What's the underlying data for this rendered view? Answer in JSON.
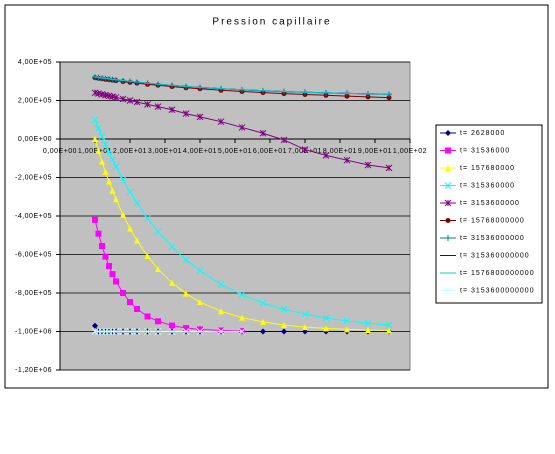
{
  "chart_data": {
    "type": "line",
    "title": "Pression capillaire",
    "x": [
      10,
      11,
      12,
      13,
      14,
      15,
      16,
      18,
      20,
      22,
      25,
      28,
      32,
      36,
      40,
      46,
      52,
      58,
      64,
      70,
      76,
      82,
      88,
      94
    ],
    "xlim": [
      0,
      100
    ],
    "xticks": [
      {
        "value": 0,
        "label": "0,00E+00"
      },
      {
        "value": 10,
        "label": "1,00E+01"
      },
      {
        "value": 20,
        "label": "2,00E+01"
      },
      {
        "value": 30,
        "label": "3,00E+01"
      },
      {
        "value": 40,
        "label": "4,00E+01"
      },
      {
        "value": 50,
        "label": "5,00E+01"
      },
      {
        "value": 60,
        "label": "6,00E+01"
      },
      {
        "value": 70,
        "label": "7,00E+01"
      },
      {
        "value": 80,
        "label": "8,00E+01"
      },
      {
        "value": 90,
        "label": "9,00E+01"
      },
      {
        "value": 100,
        "label": "1,00E+02"
      }
    ],
    "ylim": [
      -1200000,
      400000
    ],
    "yticks": [
      {
        "value": 400000,
        "label": "4,00E+05"
      },
      {
        "value": 200000,
        "label": "2,00E+05"
      },
      {
        "value": 0,
        "label": "0,00E+00"
      },
      {
        "value": -200000,
        "label": "-2,00E+05"
      },
      {
        "value": -400000,
        "label": "-4,00E+05"
      },
      {
        "value": -600000,
        "label": "-6,00E+05"
      },
      {
        "value": -800000,
        "label": "-8,00E+05"
      },
      {
        "value": -1000000,
        "label": "-1,00E+06"
      },
      {
        "value": -1200000,
        "label": "-1,20E+06"
      }
    ],
    "grid": true,
    "legend": "right",
    "series": [
      {
        "name": "t= 2628000",
        "color": "#000080",
        "marker": "diamond",
        "values": [
          -970000,
          -1000000,
          -1000000,
          -1000000,
          -1000000,
          -1000000,
          -1000000,
          -1000000,
          -1000000,
          -1000000,
          -1000000,
          -1000000,
          -1000000,
          -1000000,
          -1000000,
          -1000000,
          -1000000,
          -1000000,
          -1000000,
          -1000000,
          -1000000,
          -1000000,
          -1000000,
          -1000000
        ]
      },
      {
        "name": "t= 31536000",
        "color": "#ff00ff",
        "marker": "square",
        "values": [
          -420000,
          -492000,
          -556000,
          -611000,
          -660000,
          -702000,
          -740000,
          -800000,
          -847000,
          -883000,
          -922000,
          -947000,
          -969000,
          -982000,
          -989000,
          -995000,
          -998000,
          null,
          null,
          null,
          null,
          null,
          null,
          null
        ]
      },
      {
        "name": "t= 157680000",
        "color": "#ffff00",
        "marker": "triangle",
        "values": [
          0,
          -61000,
          -118000,
          -171000,
          -221000,
          -268000,
          -313000,
          -393000,
          -465000,
          -528000,
          -608000,
          -675000,
          -747000,
          -803000,
          -847000,
          -895000,
          -928000,
          -950000,
          -966000,
          -977000,
          -984000,
          -989000,
          -992000,
          -995000
        ]
      },
      {
        "name": "t= 315360000",
        "color": "#00ffff",
        "marker": "x",
        "values": [
          100000,
          55000,
          12000,
          -30000,
          -69000,
          -107000,
          -143000,
          -211000,
          -275000,
          -332000,
          -412000,
          -481000,
          -560000,
          -628000,
          -684000,
          -755000,
          -809000,
          -852000,
          -885000,
          -910000,
          -930000,
          -945000,
          -957000,
          -967000
        ]
      },
      {
        "name": "t= 3153600000",
        "color": "#800080",
        "marker": "star",
        "values": [
          240000,
          236000,
          232000,
          228000,
          224000,
          220000,
          216000,
          208000,
          200000,
          192000,
          180000,
          168000,
          152000,
          132000,
          115000,
          90000,
          60000,
          30000,
          -5000,
          -55000,
          -85000,
          -110000,
          -135000,
          -150000
        ]
      },
      {
        "name": "t= 15768000000",
        "color": "#800000",
        "marker": "circle",
        "values": [
          318000,
          315000,
          313000,
          310000,
          308000,
          305000,
          303000,
          298000,
          294000,
          290000,
          284000,
          279000,
          272000,
          266000,
          261000,
          253000,
          247000,
          241000,
          236000,
          231000,
          227000,
          223000,
          219000,
          215000
        ]
      },
      {
        "name": "t= 31536000000",
        "color": "#008080",
        "marker": "plus",
        "values": [
          320000,
          318000,
          315000,
          313000,
          311000,
          308000,
          306000,
          302000,
          298000,
          294000,
          289000,
          284000,
          278000,
          272000,
          267000,
          261000,
          255000,
          250000,
          246000,
          242000,
          239000,
          237000,
          234000,
          232000
        ]
      },
      {
        "name": "t= 315360000000",
        "color": "#0000ff",
        "marker": "dash",
        "values": [
          322000,
          319000,
          317000,
          314000,
          312000,
          310000,
          307000,
          303000,
          299000,
          295000,
          290000,
          285000,
          279000,
          273000,
          268000,
          262000,
          256000,
          251000,
          247000,
          243000,
          240000,
          237000,
          235000,
          233000
        ]
      },
      {
        "name": "t= 1576800000000",
        "color": "#00cccc",
        "marker": "dash",
        "values": [
          323000,
          320000,
          318000,
          315000,
          313000,
          310000,
          308000,
          304000,
          300000,
          296000,
          290000,
          285000,
          279000,
          273000,
          268000,
          262000,
          256000,
          251000,
          247000,
          243000,
          240000,
          237000,
          235000,
          233000
        ]
      },
      {
        "name": "t= 3153600000000",
        "color": "#ccffff",
        "marker": "x",
        "values": [
          -1000000,
          -1000000,
          -1000000,
          -1000000,
          -1000000,
          -1000000,
          -1000000,
          -1000000,
          -1000000,
          -1000000,
          -1000000,
          -1000000,
          -1000000,
          -1000000,
          -1000000,
          -1000000,
          -1000000,
          null,
          null,
          null,
          null,
          null,
          null,
          null
        ]
      }
    ]
  }
}
